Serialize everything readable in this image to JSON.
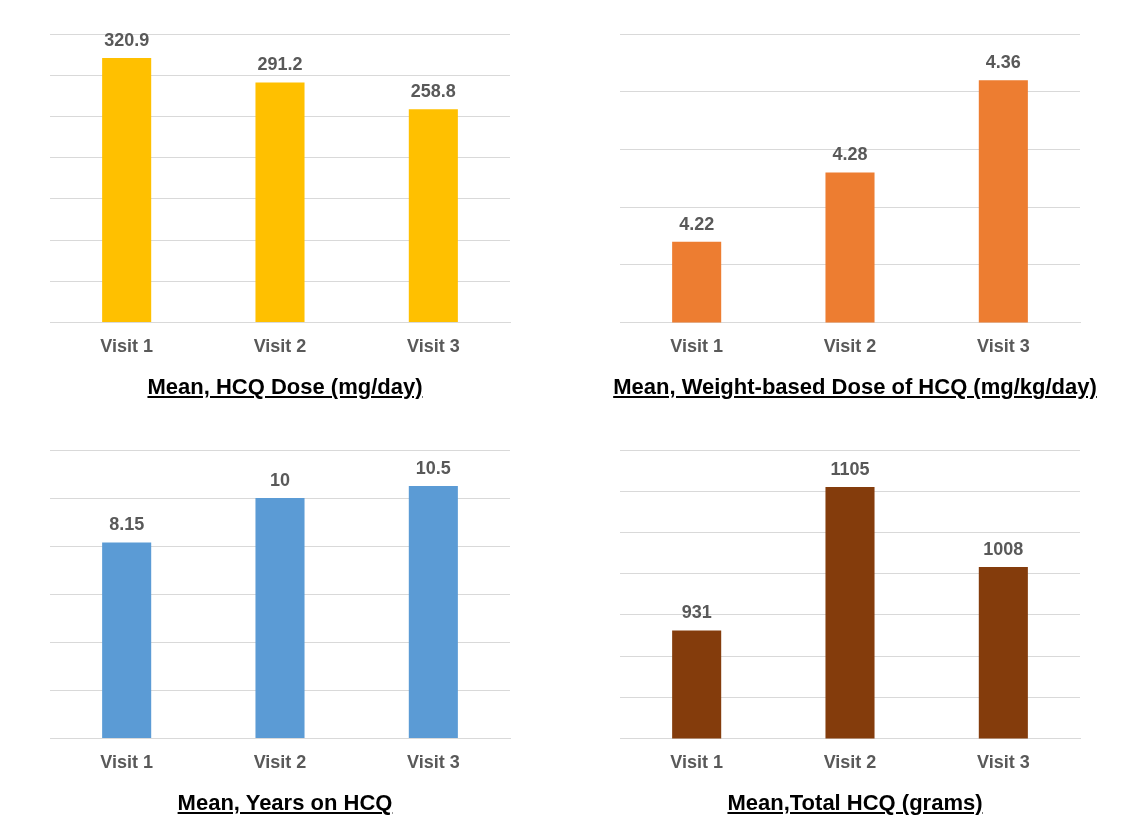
{
  "chart_data": [
    {
      "type": "bar",
      "title": "Mean, HCQ Dose (mg/day)",
      "categories": [
        "Visit 1",
        "Visit 2",
        "Visit 3"
      ],
      "values": [
        320.9,
        291.2,
        258.8
      ],
      "color": "#ffc000",
      "ylim": [
        0,
        350
      ],
      "yticks": [
        {
          "value": 0,
          "label": null
        },
        {
          "value": 50,
          "label": null
        },
        {
          "value": 100,
          "label": null
        },
        {
          "value": 150,
          "label": null
        },
        {
          "value": 200,
          "label": null
        },
        {
          "value": 250,
          "label": null
        },
        {
          "value": 300,
          "label": null
        },
        {
          "value": 350,
          "label": null
        }
      ],
      "grid": "y",
      "tick_labels": "x",
      "data_labels": true
    },
    {
      "type": "bar",
      "title": "Mean, Weight-based Dose of HCQ (mg/kg/day)",
      "categories": [
        "Visit 1",
        "Visit 2",
        "Visit 3"
      ],
      "values": [
        4.22,
        4.28,
        4.36
      ],
      "color": "#ed7d31",
      "ylim": [
        4.15,
        4.4
      ],
      "yticks": [
        {
          "value": 4.15,
          "label": null
        },
        {
          "value": 4.2,
          "label": null
        },
        {
          "value": 4.25,
          "label": null
        },
        {
          "value": 4.3,
          "label": null
        },
        {
          "value": 4.35,
          "label": null
        },
        {
          "value": 4.4,
          "label": null
        }
      ],
      "grid": "y",
      "tick_labels": "x",
      "data_labels": true
    },
    {
      "type": "bar",
      "title": "Mean, Years on HCQ",
      "categories": [
        "Visit 1",
        "Visit 2",
        "Visit 3"
      ],
      "values": [
        8.15,
        10,
        10.5
      ],
      "color": "#5b9bd5",
      "ylim": [
        0,
        12
      ],
      "yticks": [
        {
          "value": 0,
          "label": null
        },
        {
          "value": 2,
          "label": null
        },
        {
          "value": 4,
          "label": null
        },
        {
          "value": 6,
          "label": null
        },
        {
          "value": 8,
          "label": null
        },
        {
          "value": 10,
          "label": null
        },
        {
          "value": 12,
          "label": null
        }
      ],
      "grid": "y",
      "tick_labels": "x",
      "data_labels": true
    },
    {
      "type": "bar",
      "title": "Mean,Total HCQ (grams)",
      "categories": [
        "Visit 1",
        "Visit 2",
        "Visit 3"
      ],
      "values": [
        931,
        1105,
        1008
      ],
      "color": "#843c0c",
      "ylim": [
        800,
        1150
      ],
      "yticks": [
        {
          "value": 800,
          "label": null
        },
        {
          "value": 850,
          "label": null
        },
        {
          "value": 900,
          "label": null
        },
        {
          "value": 950,
          "label": null
        },
        {
          "value": 1000,
          "label": null
        },
        {
          "value": 1050,
          "label": null
        },
        {
          "value": 1100,
          "label": null
        },
        {
          "value": 1150,
          "label": null
        }
      ],
      "grid": "y",
      "tick_labels": "x",
      "data_labels": true
    }
  ]
}
